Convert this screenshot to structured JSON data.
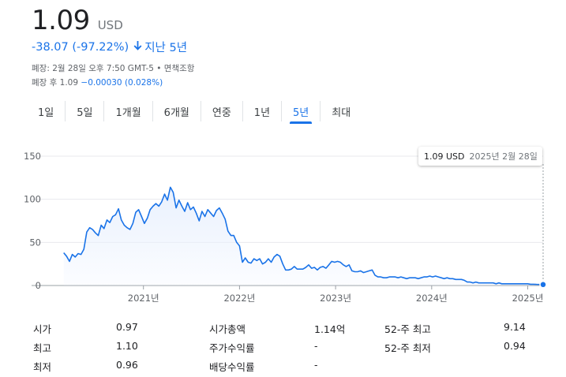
{
  "quote": {
    "price": "1.09",
    "currency": "USD",
    "change": "-38.07 (-97.22%)",
    "arrow_icon": "arrow-down",
    "period": "지난 5년",
    "meta_close": "폐장: 2월 28일 오후 7:50 GMT-5 • 면책조항",
    "after_label": "폐장 후 1.09",
    "after_change": "−0.00030 (0.028%)"
  },
  "tabs": [
    {
      "label": "1일"
    },
    {
      "label": "5일"
    },
    {
      "label": "1개월"
    },
    {
      "label": "6개월"
    },
    {
      "label": "연중"
    },
    {
      "label": "1년"
    },
    {
      "label": "5년",
      "active": true
    },
    {
      "label": "최대"
    }
  ],
  "tooltip": {
    "value": "1.09 USD",
    "date": "2025년 2월 28일"
  },
  "chart_data": {
    "type": "area",
    "y_ticks": [
      "150",
      "100",
      "50",
      "0"
    ],
    "y_tick_values": [
      150,
      100,
      50,
      0
    ],
    "x_ticks": [
      "2021년",
      "2022년",
      "2023년",
      "2024년",
      "2025년"
    ],
    "x_tick_values": [
      2021,
      2022,
      2023,
      2024,
      2025
    ],
    "ylim": [
      0,
      150
    ],
    "xlim": [
      2020.0,
      2025.16
    ],
    "grid": true,
    "line_color": "#1a73e8",
    "fill_color": "#e8f0fe",
    "series": [
      {
        "points": [
          [
            2020.17,
            38
          ],
          [
            2020.2,
            34
          ],
          [
            2020.23,
            28
          ],
          [
            2020.26,
            36
          ],
          [
            2020.29,
            33
          ],
          [
            2020.32,
            37
          ],
          [
            2020.35,
            36
          ],
          [
            2020.38,
            42
          ],
          [
            2020.41,
            62
          ],
          [
            2020.44,
            67
          ],
          [
            2020.47,
            65
          ],
          [
            2020.5,
            61
          ],
          [
            2020.53,
            58
          ],
          [
            2020.56,
            70
          ],
          [
            2020.59,
            66
          ],
          [
            2020.62,
            76
          ],
          [
            2020.65,
            73
          ],
          [
            2020.68,
            80
          ],
          [
            2020.71,
            82
          ],
          [
            2020.74,
            89
          ],
          [
            2020.77,
            76
          ],
          [
            2020.8,
            70
          ],
          [
            2020.83,
            67
          ],
          [
            2020.86,
            65
          ],
          [
            2020.89,
            72
          ],
          [
            2020.92,
            85
          ],
          [
            2020.95,
            88
          ],
          [
            2020.98,
            80
          ],
          [
            2021.01,
            72
          ],
          [
            2021.04,
            78
          ],
          [
            2021.07,
            88
          ],
          [
            2021.1,
            92
          ],
          [
            2021.13,
            95
          ],
          [
            2021.16,
            92
          ],
          [
            2021.19,
            97
          ],
          [
            2021.22,
            106
          ],
          [
            2021.25,
            99
          ],
          [
            2021.28,
            114
          ],
          [
            2021.31,
            108
          ],
          [
            2021.34,
            90
          ],
          [
            2021.37,
            99
          ],
          [
            2021.4,
            92
          ],
          [
            2021.43,
            86
          ],
          [
            2021.46,
            96
          ],
          [
            2021.49,
            88
          ],
          [
            2021.52,
            91
          ],
          [
            2021.55,
            84
          ],
          [
            2021.58,
            75
          ],
          [
            2021.61,
            86
          ],
          [
            2021.64,
            80
          ],
          [
            2021.67,
            88
          ],
          [
            2021.7,
            84
          ],
          [
            2021.73,
            80
          ],
          [
            2021.76,
            87
          ],
          [
            2021.79,
            90
          ],
          [
            2021.82,
            84
          ],
          [
            2021.85,
            77
          ],
          [
            2021.88,
            63
          ],
          [
            2021.91,
            58
          ],
          [
            2021.94,
            58
          ],
          [
            2021.97,
            50
          ],
          [
            2022.0,
            46
          ],
          [
            2022.03,
            27
          ],
          [
            2022.06,
            32
          ],
          [
            2022.09,
            27
          ],
          [
            2022.12,
            26
          ],
          [
            2022.15,
            31
          ],
          [
            2022.18,
            29
          ],
          [
            2022.21,
            31
          ],
          [
            2022.24,
            25
          ],
          [
            2022.27,
            27
          ],
          [
            2022.3,
            31
          ],
          [
            2022.33,
            27
          ],
          [
            2022.36,
            33
          ],
          [
            2022.39,
            36
          ],
          [
            2022.42,
            34
          ],
          [
            2022.45,
            25
          ],
          [
            2022.48,
            18
          ],
          [
            2022.51,
            18
          ],
          [
            2022.54,
            19
          ],
          [
            2022.57,
            22
          ],
          [
            2022.6,
            19
          ],
          [
            2022.63,
            19
          ],
          [
            2022.66,
            19
          ],
          [
            2022.69,
            21
          ],
          [
            2022.72,
            24
          ],
          [
            2022.75,
            20
          ],
          [
            2022.78,
            21
          ],
          [
            2022.81,
            18
          ],
          [
            2022.84,
            21
          ],
          [
            2022.87,
            22
          ],
          [
            2022.9,
            20
          ],
          [
            2022.93,
            24
          ],
          [
            2022.96,
            28
          ],
          [
            2022.99,
            27
          ],
          [
            2023.02,
            28
          ],
          [
            2023.05,
            27
          ],
          [
            2023.08,
            24
          ],
          [
            2023.11,
            22
          ],
          [
            2023.14,
            24
          ],
          [
            2023.17,
            17
          ],
          [
            2023.2,
            16
          ],
          [
            2023.23,
            16
          ],
          [
            2023.26,
            17
          ],
          [
            2023.29,
            15
          ],
          [
            2023.32,
            16
          ],
          [
            2023.35,
            17
          ],
          [
            2023.38,
            18
          ],
          [
            2023.41,
            12
          ],
          [
            2023.44,
            10
          ],
          [
            2023.47,
            10
          ],
          [
            2023.5,
            9
          ],
          [
            2023.53,
            9
          ],
          [
            2023.56,
            10
          ],
          [
            2023.59,
            10
          ],
          [
            2023.62,
            10
          ],
          [
            2023.65,
            9
          ],
          [
            2023.68,
            10
          ],
          [
            2023.71,
            9
          ],
          [
            2023.74,
            8
          ],
          [
            2023.77,
            9
          ],
          [
            2023.8,
            9
          ],
          [
            2023.83,
            9
          ],
          [
            2023.86,
            8
          ],
          [
            2023.89,
            9
          ],
          [
            2023.92,
            10
          ],
          [
            2023.95,
            10
          ],
          [
            2023.98,
            11
          ],
          [
            2024.01,
            10
          ],
          [
            2024.04,
            11
          ],
          [
            2024.07,
            10
          ],
          [
            2024.1,
            9
          ],
          [
            2024.13,
            8
          ],
          [
            2024.16,
            9
          ],
          [
            2024.19,
            8
          ],
          [
            2024.22,
            8
          ],
          [
            2024.25,
            7
          ],
          [
            2024.28,
            7
          ],
          [
            2024.31,
            7
          ],
          [
            2024.34,
            6
          ],
          [
            2024.37,
            4
          ],
          [
            2024.4,
            4
          ],
          [
            2024.43,
            3
          ],
          [
            2024.46,
            4
          ],
          [
            2024.49,
            3
          ],
          [
            2024.52,
            3
          ],
          [
            2024.55,
            3
          ],
          [
            2024.58,
            3
          ],
          [
            2024.61,
            3
          ],
          [
            2024.64,
            3
          ],
          [
            2024.67,
            2
          ],
          [
            2024.7,
            3
          ],
          [
            2024.73,
            2
          ],
          [
            2024.76,
            2
          ],
          [
            2024.79,
            2
          ],
          [
            2024.82,
            2
          ],
          [
            2024.85,
            2
          ],
          [
            2024.88,
            2
          ],
          [
            2024.91,
            2
          ],
          [
            2024.94,
            2
          ],
          [
            2024.97,
            2
          ],
          [
            2025.0,
            2
          ],
          [
            2025.03,
            1.5
          ],
          [
            2025.06,
            1.5
          ],
          [
            2025.09,
            1.3
          ],
          [
            2025.12,
            1.2
          ],
          [
            2025.16,
            1.09
          ]
        ]
      }
    ]
  },
  "stats": {
    "col1": [
      {
        "label": "시가",
        "value": "0.97"
      },
      {
        "label": "최고",
        "value": "1.10"
      },
      {
        "label": "최저",
        "value": "0.96"
      }
    ],
    "col2": [
      {
        "label": "시가총액",
        "value": "1.14억"
      },
      {
        "label": "주가수익률",
        "value": "-"
      },
      {
        "label": "배당수익률",
        "value": "-"
      }
    ],
    "col3": [
      {
        "label": "52-주 최고",
        "value": "9.14"
      },
      {
        "label": "52-주 최저",
        "value": "0.94"
      }
    ]
  }
}
